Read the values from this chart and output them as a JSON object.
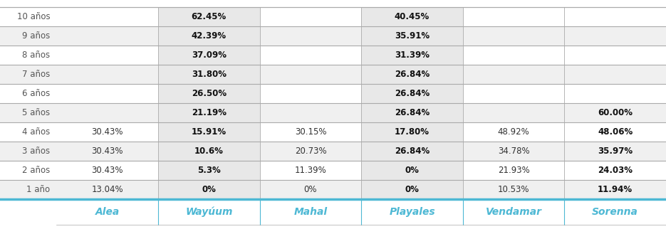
{
  "columns": [
    "Alea",
    "Wayúum",
    "Mahal",
    "Playales",
    "Vendamar",
    "Sorenna"
  ],
  "rows": [
    "10 años",
    "9 años",
    "8 años",
    "7 años",
    "6 años",
    "5 años",
    "4 años",
    "3 años",
    "2 años",
    "1 año"
  ],
  "table_data": [
    [
      "",
      "62.45%",
      "",
      "40.45%",
      "",
      ""
    ],
    [
      "",
      "42.39%",
      "",
      "35.91%",
      "",
      ""
    ],
    [
      "",
      "37.09%",
      "",
      "31.39%",
      "",
      ""
    ],
    [
      "",
      "31.80%",
      "",
      "26.84%",
      "",
      ""
    ],
    [
      "",
      "26.50%",
      "",
      "26.84%",
      "",
      ""
    ],
    [
      "",
      "21.19%",
      "",
      "26.84%",
      "",
      "60.00%"
    ],
    [
      "30.43%",
      "15.91%",
      "30.15%",
      "17.80%",
      "48.92%",
      "48.06%"
    ],
    [
      "30.43%",
      "10.6%",
      "20.73%",
      "26.84%",
      "34.78%",
      "35.97%"
    ],
    [
      "30.43%",
      "5.3%",
      "11.39%",
      "0%",
      "21.93%",
      "24.03%"
    ],
    [
      "13.04%",
      "0%",
      "0%",
      "0%",
      "10.53%",
      "11.94%"
    ]
  ],
  "bold_cols": [
    1,
    3,
    5
  ],
  "header_color": "#4db8d4",
  "row_label_color": "#555555",
  "cell_text_color": "#333333",
  "bold_text_color": "#111111",
  "alt_row_bg": "#f0f0f0",
  "normal_row_bg": "#ffffff",
  "header_text_color": "#4db8d4",
  "separator_color": "#aaaaaa",
  "bottom_line_color": "#4db8d4"
}
